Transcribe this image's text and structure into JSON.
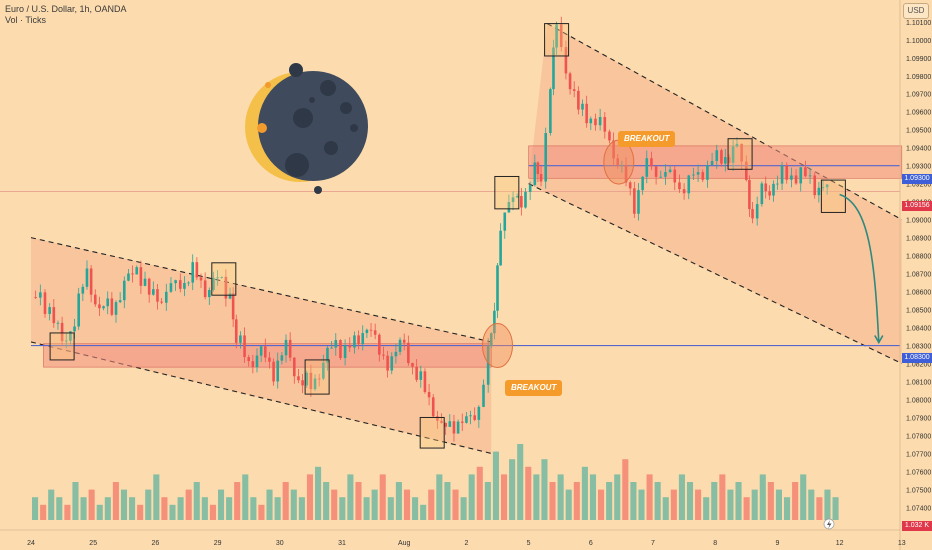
{
  "header": {
    "symbol_line": "Euro / U.S. Dollar, 1h, OANDA",
    "indicator_line": "Vol · Ticks",
    "currency_button": "USD"
  },
  "price_tags": {
    "level_a": "1.09300",
    "current": "1.09156",
    "level_b": "1.08300",
    "volume": "1.032 K"
  },
  "annotations": {
    "breakout_1": "BREAKOUT",
    "breakout_2": "BREAKOUT"
  },
  "colors": {
    "background": "#fcdcae",
    "channel_fill": "#f7a98a",
    "zone_fill": "#f28f80",
    "level_line": "#5566cc",
    "bull": "#26a69a",
    "bear": "#ef5350",
    "current_tag": "#e0384a",
    "level_tag": "#3f5fd8",
    "projection_arrow": "#2e8a7e",
    "moon": "#3f4a5c",
    "crescent": "#f5c04a"
  },
  "icons": [
    "moon-icon",
    "lightning-icon"
  ],
  "chart_data": {
    "type": "candlestick",
    "symbol": "EURUSD",
    "timeframe": "1h",
    "y_axis": {
      "ticks": [
        "1.10100",
        "1.10000",
        "1.09900",
        "1.09800",
        "1.09700",
        "1.09600",
        "1.09500",
        "1.09400",
        "1.09300",
        "1.09200",
        "1.09100",
        "1.09000",
        "1.08900",
        "1.08800",
        "1.08700",
        "1.08600",
        "1.08500",
        "1.08400",
        "1.08300",
        "1.08200",
        "1.08100",
        "1.08000",
        "1.07900",
        "1.07800",
        "1.07700",
        "1.07600",
        "1.07500",
        "1.07400"
      ],
      "range": [
        1.0733,
        1.1011
      ]
    },
    "x_axis": {
      "ticks": [
        {
          "label": "24",
          "day": 0
        },
        {
          "label": "25",
          "day": 1
        },
        {
          "label": "26",
          "day": 2
        },
        {
          "label": "29",
          "day": 3
        },
        {
          "label": "30",
          "day": 4
        },
        {
          "label": "31",
          "day": 5
        },
        {
          "label": "Aug",
          "day": 6
        },
        {
          "label": "2",
          "day": 7
        },
        {
          "label": "5",
          "day": 8
        },
        {
          "label": "6",
          "day": 9
        },
        {
          "label": "7",
          "day": 10
        },
        {
          "label": "8",
          "day": 11
        },
        {
          "label": "9",
          "day": 12
        },
        {
          "label": "12",
          "day": 13
        },
        {
          "label": "13",
          "day": 14
        }
      ]
    },
    "price_path": [
      {
        "day": 0.0,
        "price": 1.0857
      },
      {
        "day": 0.3,
        "price": 1.0852
      },
      {
        "day": 0.5,
        "price": 1.083
      },
      {
        "day": 0.7,
        "price": 1.0845
      },
      {
        "day": 0.9,
        "price": 1.087
      },
      {
        "day": 1.1,
        "price": 1.0849
      },
      {
        "day": 1.3,
        "price": 1.0852
      },
      {
        "day": 1.5,
        "price": 1.0862
      },
      {
        "day": 1.7,
        "price": 1.0875
      },
      {
        "day": 1.9,
        "price": 1.0857
      },
      {
        "day": 2.1,
        "price": 1.0858
      },
      {
        "day": 2.4,
        "price": 1.0865
      },
      {
        "day": 2.6,
        "price": 1.087
      },
      {
        "day": 2.8,
        "price": 1.0862
      },
      {
        "day": 3.0,
        "price": 1.0866
      },
      {
        "day": 3.2,
        "price": 1.086
      },
      {
        "day": 3.3,
        "price": 1.0832
      },
      {
        "day": 3.5,
        "price": 1.0822
      },
      {
        "day": 3.7,
        "price": 1.0825
      },
      {
        "day": 3.9,
        "price": 1.0817
      },
      {
        "day": 4.1,
        "price": 1.0828
      },
      {
        "day": 4.3,
        "price": 1.0812
      },
      {
        "day": 4.5,
        "price": 1.0806
      },
      {
        "day": 4.7,
        "price": 1.0822
      },
      {
        "day": 4.9,
        "price": 1.083
      },
      {
        "day": 5.2,
        "price": 1.0829
      },
      {
        "day": 5.4,
        "price": 1.0843
      },
      {
        "day": 5.6,
        "price": 1.0825
      },
      {
        "day": 5.8,
        "price": 1.0822
      },
      {
        "day": 6.0,
        "price": 1.0832
      },
      {
        "day": 6.2,
        "price": 1.0812
      },
      {
        "day": 6.4,
        "price": 1.0802
      },
      {
        "day": 6.6,
        "price": 1.0782
      },
      {
        "day": 6.8,
        "price": 1.0788
      },
      {
        "day": 7.0,
        "price": 1.0786
      },
      {
        "day": 7.2,
        "price": 1.0797
      },
      {
        "day": 7.35,
        "price": 1.0823
      },
      {
        "day": 7.45,
        "price": 1.085
      },
      {
        "day": 7.55,
        "price": 1.09
      },
      {
        "day": 7.75,
        "price": 1.091
      },
      {
        "day": 7.95,
        "price": 1.0915
      },
      {
        "day": 8.1,
        "price": 1.0925
      },
      {
        "day": 8.2,
        "price": 1.0925
      },
      {
        "day": 8.35,
        "price": 1.0975
      },
      {
        "day": 8.45,
        "price": 1.1005
      },
      {
        "day": 8.6,
        "price": 1.0985
      },
      {
        "day": 8.8,
        "price": 1.096
      },
      {
        "day": 9.0,
        "price": 1.0958
      },
      {
        "day": 9.3,
        "price": 1.0945
      },
      {
        "day": 9.5,
        "price": 1.0925
      },
      {
        "day": 9.7,
        "price": 1.091
      },
      {
        "day": 9.9,
        "price": 1.093
      },
      {
        "day": 10.2,
        "price": 1.0925
      },
      {
        "day": 10.5,
        "price": 1.0918
      },
      {
        "day": 10.8,
        "price": 1.0928
      },
      {
        "day": 11.1,
        "price": 1.0935
      },
      {
        "day": 11.35,
        "price": 1.0938
      },
      {
        "day": 11.5,
        "price": 1.0925
      },
      {
        "day": 11.6,
        "price": 1.09
      },
      {
        "day": 11.75,
        "price": 1.0915
      },
      {
        "day": 12.0,
        "price": 1.0922
      },
      {
        "day": 12.3,
        "price": 1.0926
      },
      {
        "day": 12.6,
        "price": 1.092
      },
      {
        "day": 12.8,
        "price": 1.0916
      }
    ],
    "lines": [
      {
        "name": "resistance-level",
        "price": 1.093,
        "from_day": 8.0,
        "to_day": 14.0
      },
      {
        "name": "support-level",
        "price": 1.083,
        "from_day": 0.0,
        "to_day": 14.0
      },
      {
        "name": "current-price",
        "price": 1.09156,
        "from_day": 0.0,
        "to_day": 14.0
      }
    ],
    "zones": [
      {
        "price_top": 1.0941,
        "price_bottom": 1.0923,
        "from_day": 8.0,
        "to_day": 14.0
      },
      {
        "price_top": 1.0831,
        "price_bottom": 1.0818,
        "from_day": 0.2,
        "to_day": 7.4
      }
    ],
    "channels": [
      {
        "upper": [
          {
            "day": 0.0,
            "price": 1.089
          },
          {
            "day": 7.4,
            "price": 1.0832
          }
        ],
        "lower": [
          {
            "day": 0.0,
            "price": 1.0832
          },
          {
            "day": 7.4,
            "price": 1.077
          }
        ]
      },
      {
        "upper": [
          {
            "day": 8.3,
            "price": 1.1009
          },
          {
            "day": 14.0,
            "price": 1.09
          }
        ],
        "lower": [
          {
            "day": 8.0,
            "price": 1.092
          },
          {
            "day": 14.0,
            "price": 1.082
          }
        ]
      }
    ],
    "projection": {
      "from": {
        "day": 13.0,
        "price": 1.0914
      },
      "to": {
        "day": 14.0,
        "price": 1.083
      }
    },
    "marked_candles": [
      {
        "day": 0.5,
        "price_top": 1.0837,
        "price_bottom": 1.0822
      },
      {
        "day": 3.1,
        "price_top": 1.0876,
        "price_bottom": 1.0858
      },
      {
        "day": 4.6,
        "price_top": 1.0822,
        "price_bottom": 1.0803
      },
      {
        "day": 6.45,
        "price_top": 1.079,
        "price_bottom": 1.0773
      },
      {
        "day": 7.65,
        "price_top": 1.0924,
        "price_bottom": 1.0906
      },
      {
        "day": 8.45,
        "price_top": 1.1009,
        "price_bottom": 1.0991
      },
      {
        "day": 11.4,
        "price_top": 1.0945,
        "price_bottom": 1.0928
      },
      {
        "day": 12.9,
        "price_top": 1.0922,
        "price_bottom": 1.0904
      }
    ],
    "breakout_circles": [
      {
        "day": 7.5,
        "price": 1.083
      },
      {
        "day": 9.45,
        "price": 1.0932
      }
    ],
    "volume_profile": [
      0.3,
      0.2,
      0.4,
      0.3,
      0.2,
      0.5,
      0.3,
      0.4,
      0.2,
      0.3,
      0.5,
      0.4,
      0.3,
      0.2,
      0.4,
      0.6,
      0.3,
      0.2,
      0.3,
      0.4,
      0.5,
      0.3,
      0.2,
      0.4,
      0.3,
      0.5,
      0.6,
      0.3,
      0.2,
      0.4,
      0.3,
      0.5,
      0.4,
      0.3,
      0.6,
      0.7,
      0.5,
      0.4,
      0.3,
      0.6,
      0.5,
      0.3,
      0.4,
      0.6,
      0.3,
      0.5,
      0.4,
      0.3,
      0.2,
      0.4,
      0.6,
      0.5,
      0.4,
      0.3,
      0.6,
      0.7,
      0.5,
      0.9,
      0.6,
      0.8,
      1.0,
      0.7,
      0.6,
      0.8,
      0.5,
      0.6,
      0.4,
      0.5,
      0.7,
      0.6,
      0.4,
      0.5,
      0.6,
      0.8,
      0.5,
      0.4,
      0.6,
      0.5,
      0.3,
      0.4,
      0.6,
      0.5,
      0.4,
      0.3,
      0.5,
      0.6,
      0.4,
      0.5,
      0.3,
      0.4,
      0.6,
      0.5,
      0.4,
      0.3,
      0.5,
      0.6,
      0.4,
      0.3,
      0.4,
      0.3
    ]
  }
}
